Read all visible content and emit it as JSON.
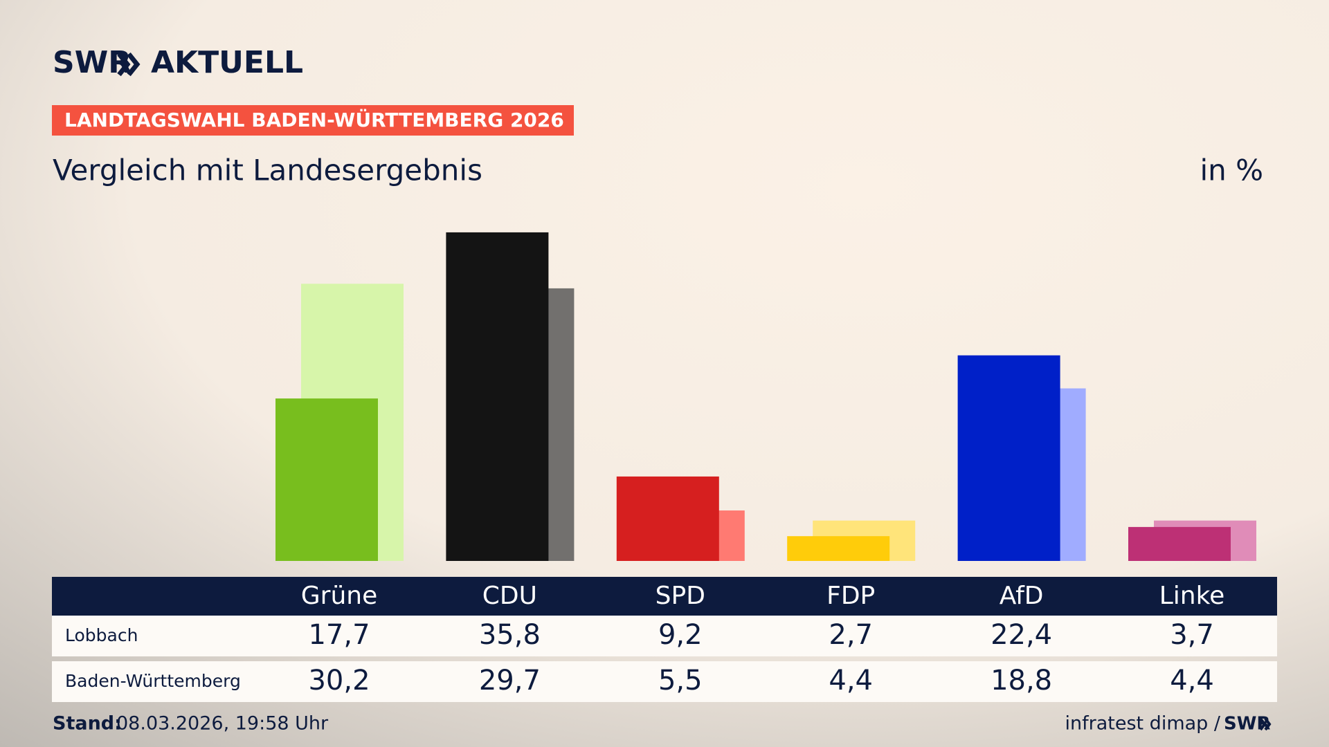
{
  "logo": {
    "brand": "SWR",
    "name": "AKTUELL"
  },
  "banner": "LANDTAGSWAHL BADEN-WÜRTTEMBERG 2026",
  "footer": {
    "stand_label": "Stand:",
    "stand_value": "08.03.2026, 19:58 Uhr",
    "source": "infratest dimap /",
    "brand": "SWR"
  },
  "chart_data": {
    "type": "bar",
    "title": "Vergleich mit Landesergebnis",
    "unit": "in %",
    "categories": [
      "Grüne",
      "CDU",
      "SPD",
      "FDP",
      "AfD",
      "Linke"
    ],
    "series": [
      {
        "name": "Lobbach",
        "colors": [
          "#78be1e",
          "#141414",
          "#d61f1f",
          "#ffcc0a",
          "#0020c8",
          "#bd3075"
        ],
        "values": [
          17.7,
          35.8,
          9.2,
          2.7,
          22.4,
          3.7
        ],
        "value_labels": [
          "17,7",
          "35,8",
          "9,2",
          "2,7",
          "22,4",
          "3,7"
        ]
      },
      {
        "name": "Baden-Württemberg",
        "colors": [
          "#d7f5aa",
          "#72706e",
          "#ff7a72",
          "#ffe47a",
          "#a0acff",
          "#e08cb8"
        ],
        "values": [
          30.2,
          29.7,
          5.5,
          4.4,
          18.8,
          4.4
        ],
        "value_labels": [
          "30,2",
          "29,7",
          "5,5",
          "4,4",
          "18,8",
          "4,4"
        ]
      }
    ]
  }
}
